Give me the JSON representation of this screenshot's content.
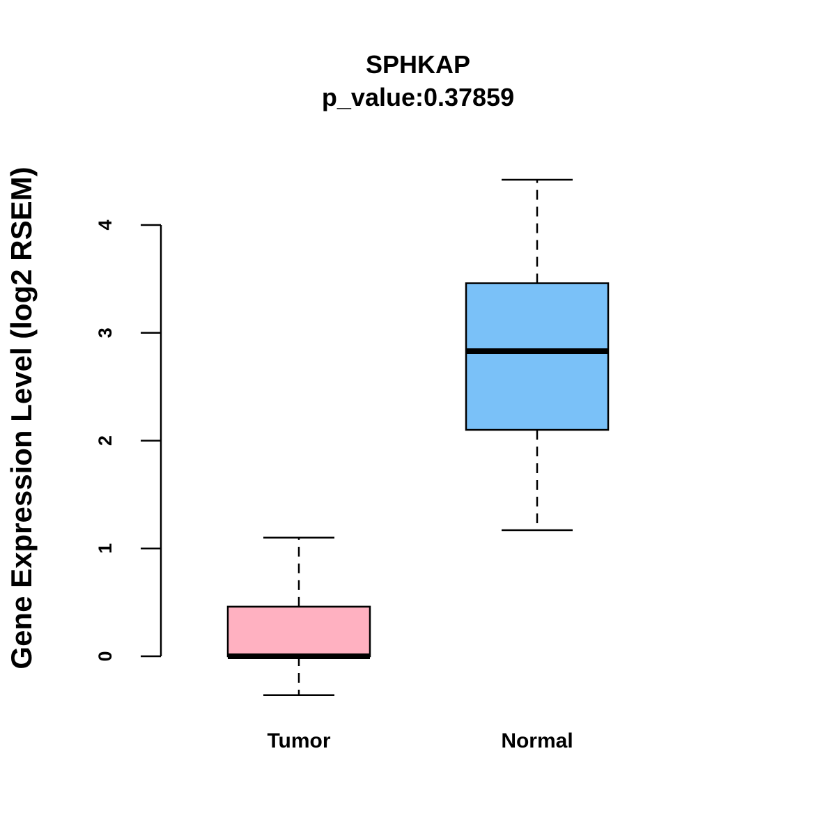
{
  "chart_data": {
    "type": "boxplot",
    "title": "SPHKAP",
    "subtitle": "p_value:0.37859",
    "ylabel": "Gene Expression Level (log2 RSEM)",
    "xlabel": "",
    "ylim": [
      0,
      4
    ],
    "yticks": [
      0,
      1,
      2,
      3,
      4
    ],
    "categories": [
      "Tumor",
      "Normal"
    ],
    "boxes": [
      {
        "min": -0.36,
        "q1": 0.0,
        "median": 0.0,
        "q3": 0.46,
        "max": 1.1,
        "color": "#ffb1c1"
      },
      {
        "min": 1.17,
        "q1": 2.1,
        "median": 2.83,
        "q3": 3.46,
        "max": 4.42,
        "color": "#7ac1f8"
      }
    ],
    "grid": false
  }
}
